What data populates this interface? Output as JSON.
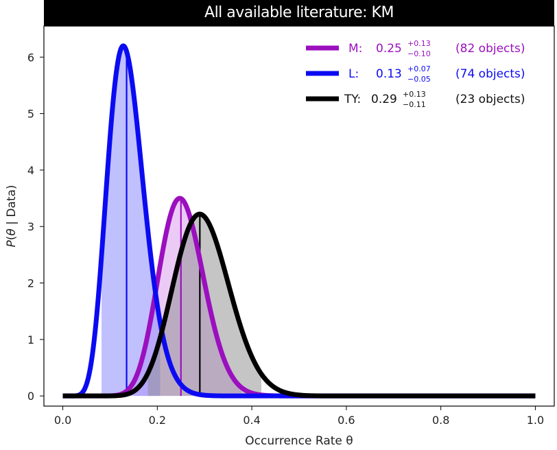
{
  "chart_data": {
    "type": "line",
    "title": "All available literature: KM",
    "xlabel": "Occurrence Rate θ",
    "ylabel_parts": [
      "P",
      "(",
      "θ",
      " | Data)"
    ],
    "xlim": [
      -0.04,
      1.04
    ],
    "ylim": [
      -0.18,
      6.55
    ],
    "xticks": [
      0.0,
      0.2,
      0.4,
      0.6,
      0.8,
      1.0
    ],
    "xtick_labels": [
      "0.0",
      "0.2",
      "0.4",
      "0.6",
      "0.8",
      "1.0"
    ],
    "yticks": [
      0,
      1,
      2,
      3,
      4,
      5,
      6
    ],
    "ytick_labels": [
      "0",
      "1",
      "2",
      "3",
      "4",
      "5",
      "6"
    ],
    "grid": false,
    "legend_position": "top-right",
    "series": [
      {
        "key": "M",
        "label": "M:",
        "value": "0.25",
        "plus": "+0.13",
        "minus": "−0.10",
        "count": "(82 objects)",
        "color": "#9b0fbf",
        "fill": "rgba(210,140,235,0.45)",
        "median": 0.25,
        "peak": 3.5,
        "alpha": 21.3,
        "beta": 62.7,
        "interval": [
          0.15,
          0.378
        ],
        "lw": 7
      },
      {
        "key": "L",
        "label": "L:",
        "value": "0.13",
        "plus": "+0.07",
        "minus": "−0.05",
        "count": "(74 objects)",
        "color": "#0b0bf2",
        "fill": "rgba(140,140,255,0.55)",
        "median": 0.135,
        "peak": 6.2,
        "alpha": 10.6,
        "beta": 66.4,
        "interval": [
          0.082,
          0.206
        ],
        "lw": 7
      },
      {
        "key": "TY",
        "label": "TY:",
        "value": "0.29",
        "plus": "+0.13",
        "minus": "−0.11",
        "count": "(23 objects)",
        "color": "#000000",
        "fill": "rgba(140,140,140,0.50)",
        "median": 0.29,
        "peak": 3.22,
        "alpha": 17.8,
        "beta": 42.2,
        "interval": [
          0.18,
          0.42
        ],
        "lw": 7
      }
    ]
  }
}
